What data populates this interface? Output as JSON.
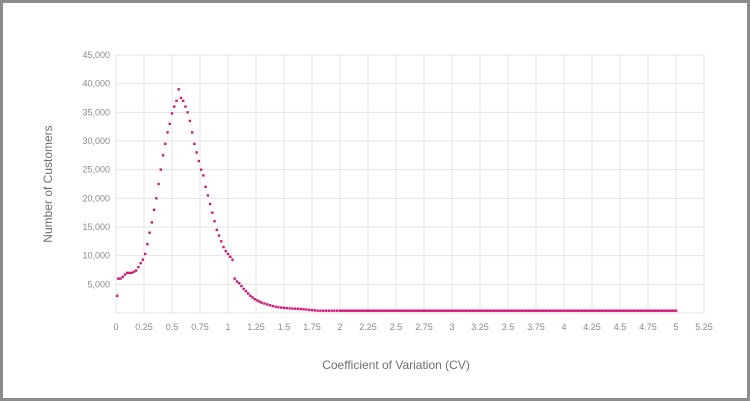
{
  "chart_data": {
    "type": "scatter",
    "title": "",
    "xlabel": "Coefficient of Variation (CV)",
    "ylabel": "Number of Customers",
    "xlim": [
      0,
      5.25
    ],
    "ylim": [
      0,
      45000
    ],
    "grid": true,
    "legend": "none",
    "x_ticks": [
      "0",
      "0.25",
      "0.5",
      "0.75",
      "1",
      "1.25",
      "1.5",
      "1.75",
      "2",
      "2.25",
      "2.5",
      "2.75",
      "3",
      "3.25",
      "3.5",
      "3.75",
      "4",
      "4.25",
      "4.5",
      "4.75",
      "5",
      "5.25"
    ],
    "y_ticks": [
      "5,000",
      "10,000",
      "15,000",
      "20,000",
      "25,000",
      "30,000",
      "35,000",
      "40,000",
      "45,000"
    ],
    "colors": {
      "points": "#d4157a",
      "grid": "#e4e4e4",
      "frame": "#8c8c8c"
    },
    "series": [
      {
        "x": [
          0.01,
          0.02,
          0.04,
          0.06,
          0.08,
          0.1,
          0.12,
          0.14,
          0.16,
          0.18,
          0.2,
          0.22,
          0.24,
          0.26,
          0.28,
          0.3,
          0.32,
          0.34,
          0.36,
          0.38,
          0.4,
          0.42,
          0.44,
          0.46,
          0.48,
          0.5,
          0.52,
          0.54,
          0.56,
          0.58,
          0.6,
          0.62,
          0.64,
          0.66,
          0.68,
          0.7,
          0.72,
          0.74,
          0.76,
          0.78,
          0.8,
          0.82,
          0.84,
          0.86,
          0.88,
          0.9,
          0.92,
          0.94,
          0.96,
          0.98,
          1.0,
          1.02,
          1.04,
          1.06,
          1.08,
          1.1,
          1.12,
          1.14,
          1.16,
          1.18,
          1.2,
          1.22,
          1.24,
          1.26,
          1.28,
          1.3,
          1.35,
          1.4,
          1.45,
          1.5,
          1.55,
          1.6,
          1.65,
          1.7,
          1.75,
          1.8,
          1.85,
          1.9,
          1.95,
          2.0,
          2.1,
          2.2,
          2.3,
          2.4,
          2.5,
          2.6,
          2.7,
          2.8,
          2.9,
          3.0,
          3.25,
          3.5,
          3.75,
          4.0,
          4.25,
          4.5,
          4.75,
          5.0
        ],
        "y": [
          3000,
          6000,
          6000,
          6300,
          6700,
          7000,
          7000,
          7000,
          7200,
          7400,
          8000,
          8700,
          9300,
          10300,
          12000,
          14000,
          15800,
          18000,
          20000,
          22500,
          25000,
          27500,
          29500,
          31500,
          33000,
          34800,
          36000,
          37000,
          39000,
          37500,
          37000,
          36000,
          35000,
          33500,
          31500,
          29500,
          28000,
          26500,
          25000,
          24000,
          22000,
          20500,
          19000,
          17500,
          16000,
          14500,
          13500,
          12500,
          11500,
          10800,
          10300,
          9800,
          9300,
          6000,
          5500,
          5200,
          4700,
          4200,
          3800,
          3400,
          3000,
          2700,
          2400,
          2200,
          2000,
          1800,
          1500,
          1200,
          1000,
          900,
          800,
          750,
          700,
          600,
          500,
          400,
          400,
          400,
          400,
          400,
          400,
          400,
          400,
          400,
          400,
          400,
          400,
          400,
          400,
          400,
          400,
          400,
          400,
          400,
          400,
          400,
          400,
          400
        ]
      }
    ]
  }
}
